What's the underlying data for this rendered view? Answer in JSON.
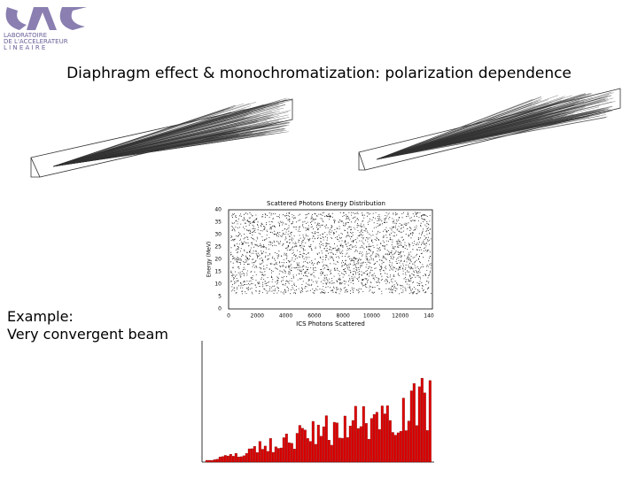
{
  "header": {
    "logo_lines": [
      "LABORATOIRE",
      "DE L'ACCELERATEUR",
      "L I N E A I R E"
    ],
    "title": "Diaphragm effect & monochromatization: polarization dependence"
  },
  "scatter_panel": {
    "title": "Scattered Photons Energy Distribution",
    "x_label": "ICS Photons Scattered",
    "y_label": "Energy (MeV)",
    "y_ticks": [
      "0",
      "5",
      "10",
      "15",
      "20",
      "25",
      "30",
      "35",
      "40"
    ],
    "x_ticks": [
      "0",
      "2000",
      "4000",
      "6000",
      "8000",
      "10000",
      "12000",
      "140"
    ]
  },
  "caption": [
    "Example:",
    "Very convergent beam"
  ]
}
